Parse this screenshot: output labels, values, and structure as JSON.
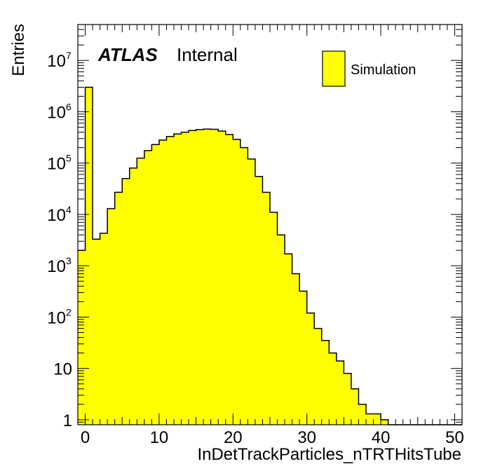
{
  "chart_data": {
    "type": "bar",
    "xlabel": "InDetTrackParticles_nTRTHitsTube",
    "ylabel": "Entries",
    "x_range": [
      -1,
      51
    ],
    "y_range": [
      0.8,
      50000000
    ],
    "y_log": true,
    "bin_width": 1,
    "series": [
      {
        "name": "Simulation",
        "color": "#ffff00",
        "edge_color": "#000000",
        "bin_low_edges": [
          -1,
          0,
          1,
          2,
          3,
          4,
          5,
          6,
          7,
          8,
          9,
          10,
          11,
          12,
          13,
          14,
          15,
          16,
          17,
          18,
          19,
          20,
          21,
          22,
          23,
          24,
          25,
          26,
          27,
          28,
          29,
          30,
          31,
          32,
          33,
          34,
          35,
          36,
          37,
          38,
          39,
          40,
          41,
          42,
          43,
          44,
          45,
          46,
          47,
          48,
          49,
          50
        ],
        "values": [
          2000,
          3000000,
          3300,
          4300,
          13000,
          27000,
          50000,
          80000,
          125000,
          175000,
          230000,
          280000,
          330000,
          370000,
          400000,
          430000,
          450000,
          460000,
          455000,
          420000,
          360000,
          290000,
          200000,
          120000,
          55000,
          27000,
          11000,
          4000,
          1700,
          700,
          320,
          120,
          60,
          35,
          20,
          14,
          8,
          4,
          2,
          1.3,
          1.3,
          1,
          0.7,
          0,
          0,
          0,
          0,
          0,
          0,
          0,
          0,
          0
        ]
      }
    ],
    "x_ticks": [
      "0",
      "10",
      "20",
      "30",
      "40",
      "50"
    ],
    "y_ticks": [
      {
        "base": "1",
        "exp": ""
      },
      {
        "base": "10",
        "exp": ""
      },
      {
        "base": "10",
        "exp": "2"
      },
      {
        "base": "10",
        "exp": "3"
      },
      {
        "base": "10",
        "exp": "4"
      },
      {
        "base": "10",
        "exp": "5"
      },
      {
        "base": "10",
        "exp": "6"
      },
      {
        "base": "10",
        "exp": "7"
      }
    ],
    "annotations": {
      "experiment": "ATLAS",
      "status": "Internal"
    },
    "legend": {
      "placement": "top-right",
      "entries": [
        "Simulation"
      ]
    },
    "grid": false
  }
}
